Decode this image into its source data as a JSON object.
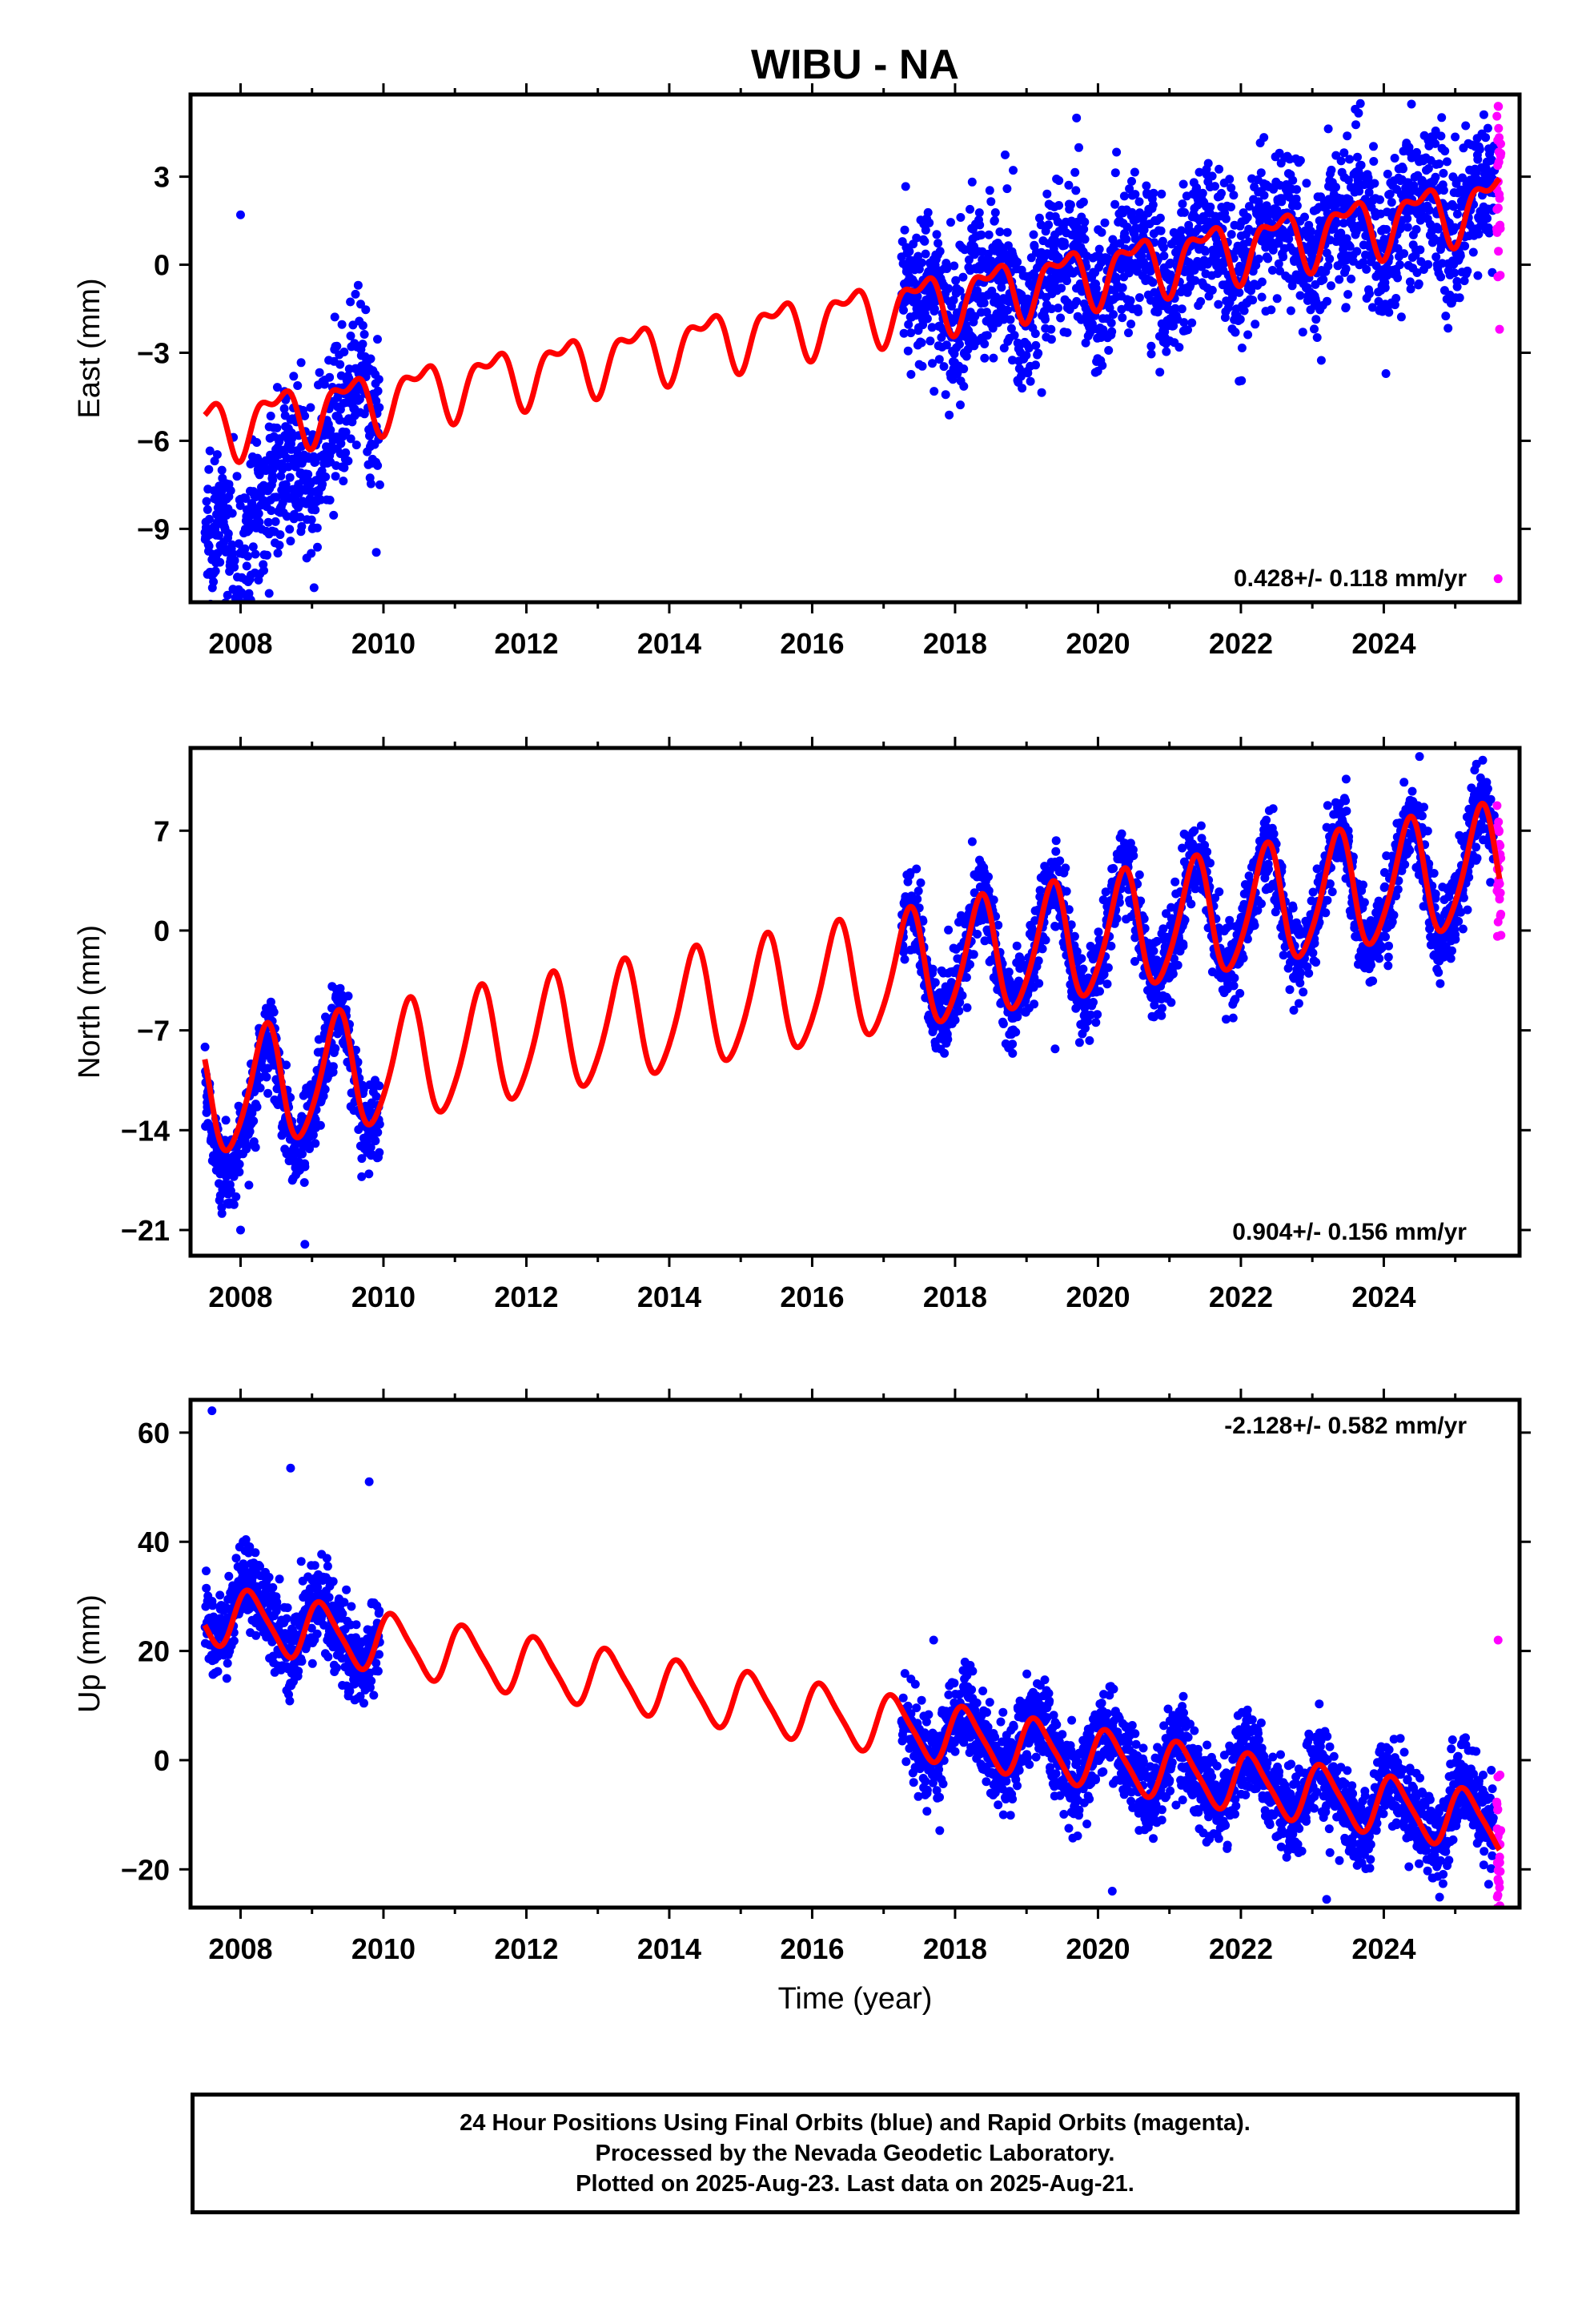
{
  "title": "WIBU - NA",
  "colors": {
    "final_orbits": "#0000ff",
    "rapid_orbits": "#ff00ff",
    "model_fit": "#ff0000"
  },
  "chart_data": [
    {
      "type": "scatter",
      "component": "east",
      "ylabel": "East (mm)",
      "xlim": [
        2007.3,
        2025.9
      ],
      "ylim": [
        -11.5,
        5.8
      ],
      "yticks": [
        3,
        0,
        -3,
        -6,
        -9
      ],
      "ytick_labels": [
        "3",
        "0",
        "−3",
        "−6",
        "−9"
      ],
      "xticks": [
        2008,
        2010,
        2012,
        2014,
        2016,
        2018,
        2020,
        2022,
        2024
      ],
      "xtick_labels": [
        "2008",
        "2010",
        "2012",
        "2014",
        "2016",
        "2018",
        "2020",
        "2022",
        "2024"
      ],
      "rate_label": "0.428+/- 0.118 mm/yr",
      "rate_position": "bottom-right",
      "grid": false,
      "final_orbit_segments": [
        [
          2007.5,
          2009.95
        ],
        [
          2017.25,
          2025.55
        ]
      ],
      "rapid_orbit_segment": [
        2025.58,
        2025.64
      ],
      "model": {
        "rate": 0.428,
        "offset_at_2018": -1.1,
        "annual_amp": 0.9,
        "annual_phase": 0.25,
        "semiannual_amp": 0.45,
        "semiannual_phase": 0.1
      },
      "scatter": {
        "noise": 1.3,
        "early_offset": -4.0,
        "density": 240
      },
      "sample_points": [
        {
          "x": 2008.0,
          "y": 1.7
        },
        {
          "x": 2008.2,
          "y": -10.5
        },
        {
          "x": 2008.4,
          "y": -11.2
        },
        {
          "x": 2009.9,
          "y": -9.8
        },
        {
          "x": 2019.7,
          "y": 5.0
        },
        {
          "x": 2023.6,
          "y": 5.3
        },
        {
          "x": 2025.6,
          "y": 5.4
        },
        {
          "x": 2025.62,
          "y": -2.2
        },
        {
          "x": 2025.6,
          "y": -10.7
        }
      ]
    },
    {
      "type": "scatter",
      "component": "north",
      "ylabel": "North (mm)",
      "xlim": [
        2007.3,
        2025.9
      ],
      "ylim": [
        -22.8,
        12.8
      ],
      "yticks": [
        7,
        0,
        -7,
        -14,
        -21
      ],
      "ytick_labels": [
        "7",
        "0",
        "−7",
        "−14",
        "−21"
      ],
      "xticks": [
        2008,
        2010,
        2012,
        2014,
        2016,
        2018,
        2020,
        2022,
        2024
      ],
      "xtick_labels": [
        "2008",
        "2010",
        "2012",
        "2014",
        "2016",
        "2018",
        "2020",
        "2022",
        "2024"
      ],
      "rate_label": "0.904+/- 0.156 mm/yr",
      "rate_position": "bottom-right",
      "grid": false,
      "final_orbit_segments": [
        [
          2007.5,
          2009.95
        ],
        [
          2017.25,
          2025.55
        ]
      ],
      "rapid_orbit_segment": [
        2025.58,
        2025.64
      ],
      "model": {
        "rate": 0.904,
        "offset_at_2018": -2.3,
        "annual_amp": 4.1,
        "annual_phase": 0.1,
        "semiannual_amp": 0.6,
        "semiannual_phase": 0.3
      },
      "scatter": {
        "noise": 1.5,
        "early_offset": -1.5,
        "density": 240
      },
      "sample_points": [
        {
          "x": 2008.0,
          "y": -21.0
        },
        {
          "x": 2008.9,
          "y": -22.0
        },
        {
          "x": 2024.5,
          "y": 12.2
        },
        {
          "x": 2019.4,
          "y": -8.3
        },
        {
          "x": 2025.6,
          "y": 0.6
        }
      ]
    },
    {
      "type": "scatter",
      "component": "up",
      "ylabel": "Up (mm)",
      "xlabel": "Time (year)",
      "xlim": [
        2007.3,
        2025.9
      ],
      "ylim": [
        -27,
        66
      ],
      "yticks": [
        60,
        40,
        20,
        0,
        -20
      ],
      "ytick_labels": [
        "60",
        "40",
        "20",
        "0",
        "−20"
      ],
      "xticks": [
        2008,
        2010,
        2012,
        2014,
        2016,
        2018,
        2020,
        2022,
        2024
      ],
      "xtick_labels": [
        "2008",
        "2010",
        "2012",
        "2014",
        "2016",
        "2018",
        "2020",
        "2022",
        "2024"
      ],
      "rate_label": "-2.128+/- 0.582 mm/yr",
      "rate_position": "top-right",
      "grid": false,
      "final_orbit_segments": [
        [
          2007.5,
          2009.95
        ],
        [
          2017.25,
          2025.55
        ]
      ],
      "rapid_orbit_segment": [
        2025.58,
        2025.64
      ],
      "model": {
        "rate": -2.128,
        "offset_at_2018": 4.5,
        "annual_amp": 5.2,
        "annual_phase": 0.9,
        "semiannual_amp": 1.0,
        "semiannual_phase": 0.4
      },
      "scatter": {
        "noise": 4.0,
        "early_offset": 2.0,
        "density": 240
      },
      "sample_points": [
        {
          "x": 2007.6,
          "y": 64
        },
        {
          "x": 2008.7,
          "y": 53.5
        },
        {
          "x": 2009.8,
          "y": 51
        },
        {
          "x": 2017.7,
          "y": 22
        },
        {
          "x": 2020.2,
          "y": -24
        },
        {
          "x": 2023.2,
          "y": -25.5
        },
        {
          "x": 2025.6,
          "y": 22
        },
        {
          "x": 2025.6,
          "y": -14
        }
      ]
    }
  ],
  "footer": {
    "line1": "24 Hour Positions Using Final Orbits (blue) and Rapid Orbits (magenta).",
    "line2": "Processed by the Nevada Geodetic Laboratory.",
    "line3": "Plotted on 2025-Aug-23. Last data on 2025-Aug-21."
  }
}
